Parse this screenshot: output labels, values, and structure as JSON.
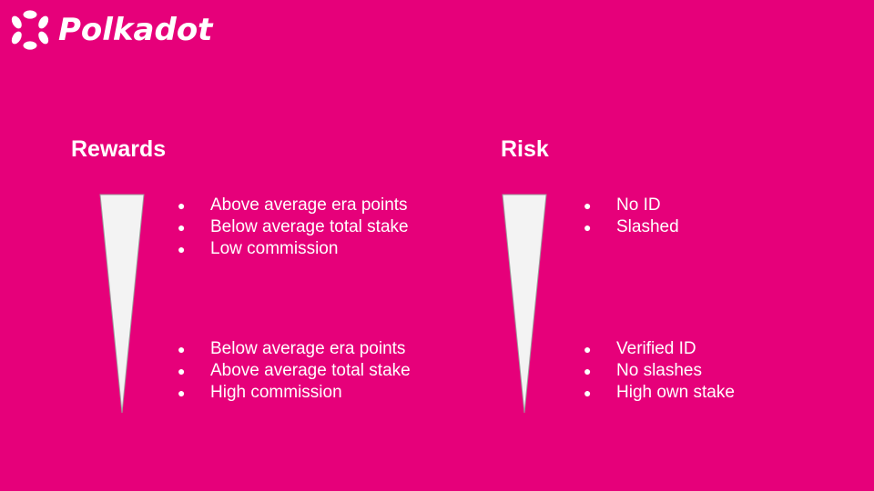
{
  "brand": {
    "name": "Polkadot",
    "logo_icon": "polkadot-logo-icon",
    "background_color": "#E6007A",
    "text_color": "#FFFFFF",
    "wedge_fill": "#F3F3F3"
  },
  "rewards": {
    "title": "Rewards",
    "top_items": [
      "Above average era points",
      "Below average total stake",
      "Low commission"
    ],
    "bottom_items": [
      "Below average era points",
      "Above average total stake",
      "High commission"
    ]
  },
  "risk": {
    "title": "Risk",
    "top_items": [
      "No ID",
      "Slashed"
    ],
    "bottom_items": [
      "Verified ID",
      "No slashes",
      "High own stake"
    ]
  },
  "bullet_glyph": "●"
}
